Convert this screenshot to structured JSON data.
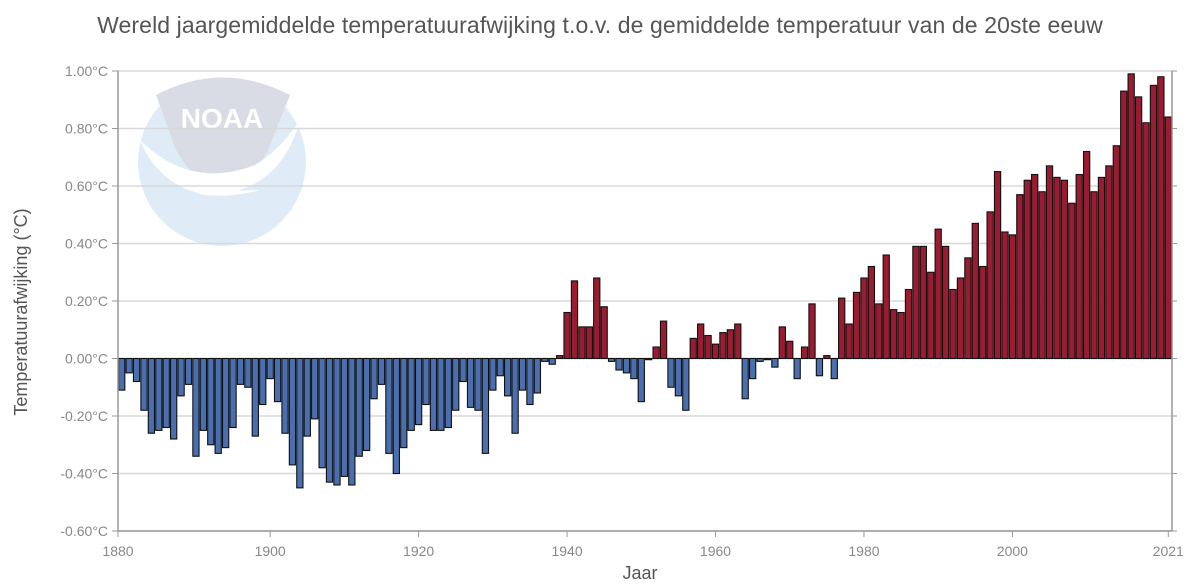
{
  "chart_data": {
    "type": "bar",
    "title": "Wereld jaargemiddelde temperatuurafwijking t.o.v. de gemiddelde temperatuur van de 20ste eeuw",
    "xlabel": "Jaar",
    "ylabel": "Temperatuurafwijking (°C)",
    "ylim": [
      -0.6,
      1.0
    ],
    "xlim": [
      1880,
      2021
    ],
    "grid": true,
    "legend": "none",
    "watermark": "NOAA",
    "colors": {
      "positive": "#9b1c31",
      "negative": "#4a6fb0",
      "outline": "#111111",
      "grid": "#d8d8d8",
      "axis": "#999999"
    },
    "y_ticks": [
      {
        "value": 1.0,
        "label": "1.00°C"
      },
      {
        "value": 0.8,
        "label": "0.80°C"
      },
      {
        "value": 0.6,
        "label": "0.60°C"
      },
      {
        "value": 0.4,
        "label": "0.40°C"
      },
      {
        "value": 0.2,
        "label": "0.20°C"
      },
      {
        "value": 0.0,
        "label": "0.00°C"
      },
      {
        "value": -0.2,
        "label": "-0.20°C"
      },
      {
        "value": -0.4,
        "label": "-0.40°C"
      },
      {
        "value": -0.6,
        "label": "-0.60°C"
      }
    ],
    "x_ticks": [
      {
        "value": 1880,
        "label": "1880"
      },
      {
        "value": 1900,
        "label": "1900"
      },
      {
        "value": 1920,
        "label": "1920"
      },
      {
        "value": 1940,
        "label": "1940"
      },
      {
        "value": 1960,
        "label": "1960"
      },
      {
        "value": 1980,
        "label": "1980"
      },
      {
        "value": 2000,
        "label": "2000"
      },
      {
        "value": 2021,
        "label": "2021"
      }
    ],
    "start_year": 1880,
    "values": [
      -0.11,
      -0.05,
      -0.08,
      -0.18,
      -0.26,
      -0.25,
      -0.24,
      -0.28,
      -0.13,
      -0.09,
      -0.34,
      -0.25,
      -0.3,
      -0.33,
      -0.31,
      -0.24,
      -0.09,
      -0.1,
      -0.27,
      -0.16,
      -0.07,
      -0.15,
      -0.26,
      -0.37,
      -0.45,
      -0.27,
      -0.21,
      -0.38,
      -0.43,
      -0.44,
      -0.41,
      -0.44,
      -0.34,
      -0.32,
      -0.14,
      -0.09,
      -0.33,
      -0.4,
      -0.31,
      -0.25,
      -0.23,
      -0.16,
      -0.25,
      -0.25,
      -0.24,
      -0.18,
      -0.08,
      -0.17,
      -0.18,
      -0.33,
      -0.11,
      -0.06,
      -0.13,
      -0.26,
      -0.11,
      -0.16,
      -0.12,
      -0.01,
      -0.02,
      0.01,
      0.16,
      0.27,
      0.11,
      0.11,
      0.28,
      0.18,
      -0.01,
      -0.04,
      -0.05,
      -0.07,
      -0.15,
      0.0,
      0.04,
      0.13,
      -0.1,
      -0.13,
      -0.18,
      0.07,
      0.12,
      0.08,
      0.05,
      0.09,
      0.1,
      0.12,
      -0.14,
      -0.07,
      -0.01,
      0.0,
      -0.03,
      0.11,
      0.06,
      -0.07,
      0.04,
      0.19,
      -0.06,
      0.01,
      -0.07,
      0.21,
      0.12,
      0.23,
      0.28,
      0.32,
      0.19,
      0.36,
      0.17,
      0.16,
      0.24,
      0.39,
      0.39,
      0.3,
      0.45,
      0.39,
      0.24,
      0.28,
      0.35,
      0.47,
      0.32,
      0.51,
      0.65,
      0.44,
      0.43,
      0.57,
      0.62,
      0.64,
      0.58,
      0.67,
      0.63,
      0.62,
      0.54,
      0.64,
      0.72,
      0.58,
      0.63,
      0.67,
      0.74,
      0.93,
      0.99,
      0.91,
      0.82,
      0.95,
      0.98,
      0.84
    ]
  }
}
